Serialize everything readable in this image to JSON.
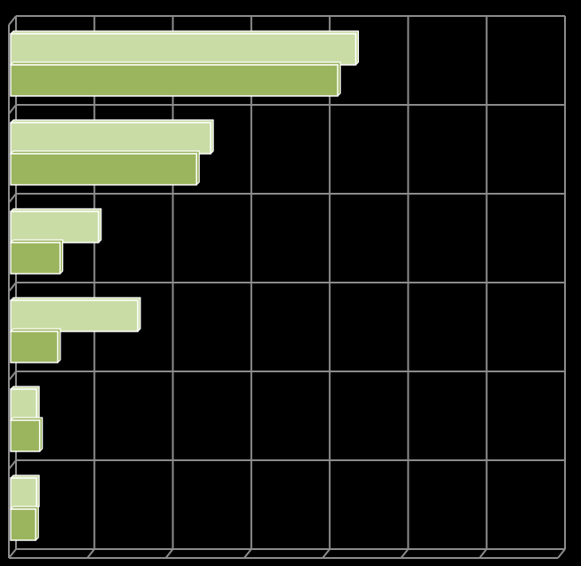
{
  "chart_data": {
    "type": "bar",
    "orientation": "horizontal",
    "style": "3d",
    "categories": [
      "",
      "",
      "",
      "",
      "",
      ""
    ],
    "series": [
      {
        "values": [
          44,
          25.5,
          11.2,
          16.2,
          3.3,
          3.3
        ],
        "color": "#c9dca6"
      },
      {
        "values": [
          41.7,
          23.7,
          6.3,
          6.0,
          3.7,
          3.2
        ],
        "color": "#9bb55e"
      }
    ],
    "xlim": [
      0,
      70
    ],
    "x_gridline_step": 10,
    "title": "",
    "xlabel": "",
    "ylabel": "",
    "grid": true,
    "legend": "none",
    "colors": {
      "background": "#000000",
      "gridline": "#8c8c8c",
      "bar_edge": "#ffffff"
    }
  }
}
